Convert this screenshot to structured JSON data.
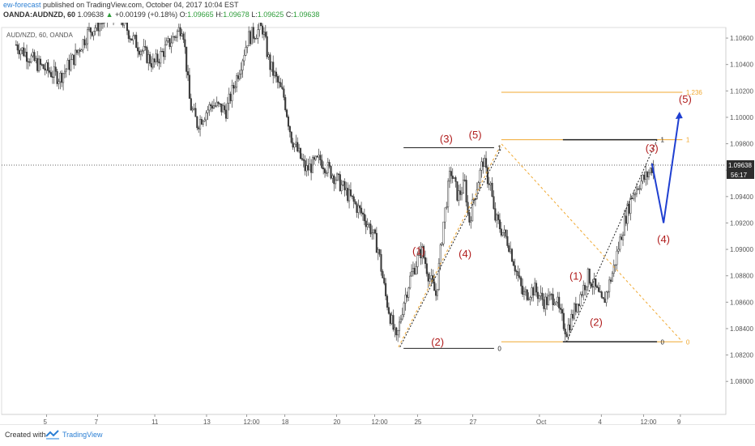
{
  "header": {
    "author": "ew-forecast",
    "published_text": " published on TradingView.com, October 04, 2017 10:04 EST",
    "symbol": "OANDA:AUDNZD, 60",
    "last": "1.09638",
    "change": "+0.00199 (+0.18%)",
    "open_label": "O:",
    "open": "1.09665",
    "high_label": "H:",
    "high": "1.09678",
    "low_label": "L:",
    "low": "1.09625",
    "close_label": "C:",
    "close": "1.09638"
  },
  "footer": {
    "created_with": "Created with",
    "brand": "TradingView"
  },
  "chart_data": {
    "type": "line",
    "chart_label": "AUD/NZD, 60, OANDA",
    "colors": {
      "candles": "#3a3a3a",
      "fib": "#f0a830",
      "projection": "#1f3fd1",
      "wave_labels": "#b01c1c",
      "price_tag": "#2d2d2d"
    },
    "ylim": [
      1.0775,
      1.1068
    ],
    "y_ticks": [
      "1.08000",
      "1.08200",
      "1.08400",
      "1.08600",
      "1.08800",
      "1.09000",
      "1.09200",
      "1.09400",
      "1.09600",
      "1.09800",
      "1.10000",
      "1.10200",
      "1.10400",
      "1.10600"
    ],
    "x_ticks": [
      "5",
      "7",
      "11",
      "13",
      "12:00",
      "18",
      "20",
      "12:00",
      "25",
      "27",
      "Oct",
      "4",
      "12:00",
      "9"
    ],
    "last_price": "1.09638",
    "countdown": "56:17",
    "price_path": [
      [
        0.02,
        1.1055
      ],
      [
        0.05,
        1.104
      ],
      [
        0.08,
        1.103
      ],
      [
        0.1,
        1.1045
      ],
      [
        0.12,
        1.1065
      ],
      [
        0.16,
        1.108
      ],
      [
        0.18,
        1.106
      ],
      [
        0.21,
        1.104
      ],
      [
        0.23,
        1.1055
      ],
      [
        0.25,
        1.107
      ],
      [
        0.26,
        1.101
      ],
      [
        0.27,
        1.0995
      ],
      [
        0.29,
        1.101
      ],
      [
        0.31,
        1.1005
      ],
      [
        0.33,
        1.104
      ],
      [
        0.34,
        1.106
      ],
      [
        0.36,
        1.1068
      ],
      [
        0.37,
        1.104
      ],
      [
        0.39,
        1.1015
      ],
      [
        0.4,
        1.0985
      ],
      [
        0.42,
        1.096
      ],
      [
        0.44,
        1.0968
      ],
      [
        0.46,
        1.0955
      ],
      [
        0.48,
        1.094
      ],
      [
        0.5,
        1.0925
      ],
      [
        0.51,
        1.0915
      ],
      [
        0.52,
        1.09
      ],
      [
        0.53,
        1.0865
      ],
      [
        0.545,
        1.083
      ],
      [
        0.555,
        1.086
      ],
      [
        0.565,
        1.088
      ],
      [
        0.58,
        1.09
      ],
      [
        0.59,
        1.088
      ],
      [
        0.6,
        1.0865
      ],
      [
        0.61,
        1.092
      ],
      [
        0.62,
        1.096
      ],
      [
        0.63,
        1.094
      ],
      [
        0.64,
        1.095
      ],
      [
        0.645,
        1.092
      ],
      [
        0.655,
        1.0945
      ],
      [
        0.665,
        1.0968
      ],
      [
        0.67,
        1.0955
      ],
      [
        0.675,
        1.095
      ],
      [
        0.68,
        1.0925
      ],
      [
        0.69,
        1.0915
      ],
      [
        0.7,
        1.0905
      ],
      [
        0.71,
        1.0885
      ],
      [
        0.72,
        1.0865
      ],
      [
        0.735,
        1.087
      ],
      [
        0.75,
        1.086
      ],
      [
        0.765,
        1.0865
      ],
      [
        0.77,
        1.0852
      ],
      [
        0.78,
        1.0838
      ],
      [
        0.795,
        1.086
      ],
      [
        0.81,
        1.088
      ],
      [
        0.82,
        1.087
      ],
      [
        0.83,
        1.0858
      ],
      [
        0.845,
        1.0885
      ],
      [
        0.855,
        1.091
      ],
      [
        0.862,
        1.0925
      ],
      [
        0.87,
        1.094
      ],
      [
        0.88,
        1.095
      ],
      [
        0.89,
        1.0955
      ],
      [
        0.9,
        1.0964
      ]
    ],
    "wave_labels": [
      {
        "text": "(1)",
        "x": 0.576,
        "y": 1.0896
      },
      {
        "text": "(2)",
        "x": 0.602,
        "y": 1.0827
      },
      {
        "text": "(3)",
        "x": 0.614,
        "y": 1.0981
      },
      {
        "text": "(4)",
        "x": 0.64,
        "y": 1.0894
      },
      {
        "text": "(5)",
        "x": 0.654,
        "y": 1.0984
      },
      {
        "text": "(1)",
        "x": 0.793,
        "y": 1.0877
      },
      {
        "text": "(2)",
        "x": 0.821,
        "y": 1.0842
      },
      {
        "text": "(3)",
        "x": 0.898,
        "y": 1.0974
      },
      {
        "text": "(4)",
        "x": 0.914,
        "y": 1.0905
      },
      {
        "text": "(5)",
        "x": 0.944,
        "y": 1.1011
      }
    ],
    "fib_levels": [
      {
        "label": "1.236",
        "y": 1.1019
      },
      {
        "label": "1",
        "y": 1.0983
      },
      {
        "label": "0",
        "y": 1.083
      }
    ],
    "black_level_labels": [
      {
        "label": "1",
        "y": 1.0977
      },
      {
        "label": "0",
        "y": 1.0825
      },
      {
        "label": "1",
        "y": 1.0983
      },
      {
        "label": "0",
        "y": 1.083
      }
    ],
    "projection": [
      [
        0.898,
        1.0965
      ],
      [
        0.914,
        1.092
      ],
      [
        0.936,
        1.1003
      ]
    ]
  }
}
